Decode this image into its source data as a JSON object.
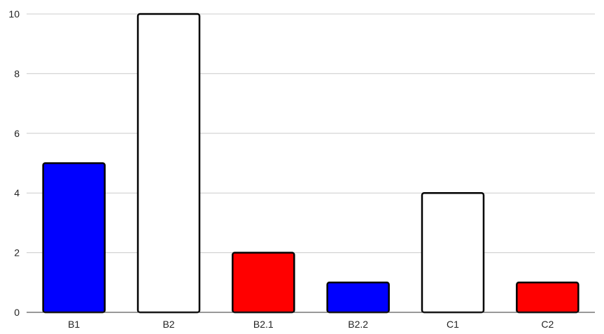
{
  "chart_data": {
    "type": "bar",
    "title": "",
    "xlabel": "",
    "ylabel": "",
    "categories": [
      "B1",
      "B2",
      "B2.1",
      "B2.2",
      "C1",
      "C2"
    ],
    "values": [
      5,
      10,
      2,
      1,
      4,
      1
    ],
    "bar_colors": [
      "#0000ff",
      "#ffffff",
      "#ff0000",
      "#0000ff",
      "#ffffff",
      "#ff0000"
    ],
    "bar_outline_color": "#000000",
    "ylim": [
      0,
      10
    ],
    "yticks": [
      0,
      2,
      4,
      6,
      8,
      10
    ],
    "grid": true,
    "legend": "none"
  }
}
